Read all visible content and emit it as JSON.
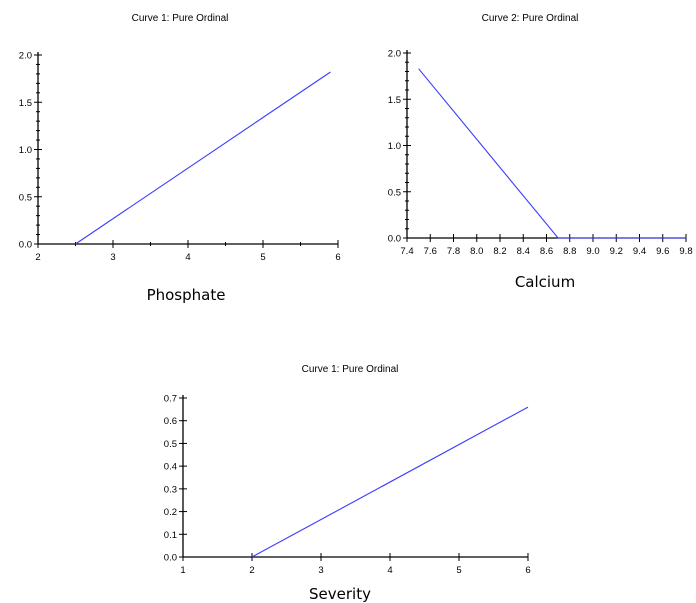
{
  "chart_data": [
    {
      "type": "line",
      "title": "Curve 1: Pure Ordinal",
      "xlabel": "Phosphate",
      "ylabel": "",
      "xlim": [
        2,
        6
      ],
      "ylim": [
        0,
        2
      ],
      "xticks": [
        "2",
        "3",
        "4",
        "5",
        "6"
      ],
      "yticks": [
        "0.0",
        "0.5",
        "1.0",
        "1.5",
        "2.0"
      ],
      "series": [
        {
          "color": "#3b3bff",
          "x": [
            2.5,
            5.9
          ],
          "y": [
            0.0,
            1.82
          ]
        }
      ]
    },
    {
      "type": "line",
      "title": "Curve 2: Pure Ordinal",
      "xlabel": "Calcium",
      "ylabel": "",
      "xlim": [
        7.4,
        9.8
      ],
      "ylim": [
        0,
        2
      ],
      "xticks": [
        "7.4",
        "7.6",
        "7.8",
        "8.0",
        "8.2",
        "8.4",
        "8.6",
        "8.8",
        "9.0",
        "9.2",
        "9.4",
        "9.6",
        "9.8"
      ],
      "yticks": [
        "0.0",
        "0.5",
        "1.0",
        "1.5",
        "2.0"
      ],
      "series": [
        {
          "color": "#3b3bff",
          "x": [
            7.5,
            8.7,
            9.8
          ],
          "y": [
            1.83,
            0.0,
            0.0
          ]
        }
      ]
    },
    {
      "type": "line",
      "title": "Curve 1: Pure Ordinal",
      "xlabel": "Severity",
      "ylabel": "",
      "xlim": [
        1,
        6
      ],
      "ylim": [
        0,
        0.7
      ],
      "xticks": [
        "1",
        "2",
        "3",
        "4",
        "5",
        "6"
      ],
      "yticks": [
        "0.0",
        "0.1",
        "0.2",
        "0.3",
        "0.4",
        "0.5",
        "0.6",
        "0.7"
      ],
      "series": [
        {
          "color": "#3b3bff",
          "x": [
            2.0,
            6.0
          ],
          "y": [
            0.0,
            0.66
          ]
        }
      ]
    }
  ]
}
